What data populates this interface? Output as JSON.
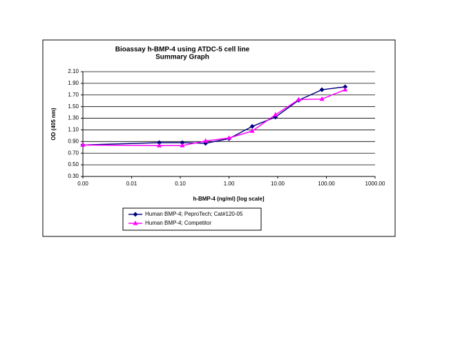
{
  "chart_data": {
    "type": "line",
    "title": "Bioassay h-BMP-4 using ATDC-5 cell line",
    "subtitle": "Summary Graph",
    "x_label": "h-BMP-4 (ng/ml) [log scale]",
    "y_label": "OD (405 nm)",
    "x_scale": "log",
    "grid": true,
    "x": [
      0.001,
      0.037,
      0.11,
      0.33,
      1,
      3,
      9,
      27,
      81,
      243
    ],
    "series": [
      {
        "name": "Human BMP-4; PeproTech; Cat#120-05",
        "color": "#000080",
        "marker": "diamond",
        "values": [
          0.84,
          0.88,
          0.88,
          0.87,
          0.95,
          1.16,
          1.32,
          1.61,
          1.79,
          1.84
        ]
      },
      {
        "name": "Human BMP-4; Competitor",
        "color": "#ff00ff",
        "marker": "triangle",
        "values": [
          0.84,
          0.83,
          0.83,
          0.91,
          0.96,
          1.08,
          1.36,
          1.62,
          1.63,
          1.79
        ]
      }
    ],
    "xlim": [
      0.001,
      1000
    ],
    "xticks": [
      {
        "value": 0.001,
        "label": "0.00"
      },
      {
        "value": 0.01,
        "label": "0.01"
      },
      {
        "value": 0.1,
        "label": "0.10"
      },
      {
        "value": 1,
        "label": "1.00"
      },
      {
        "value": 10,
        "label": "10.00"
      },
      {
        "value": 100,
        "label": "100.00"
      },
      {
        "value": 1000,
        "label": "1000.00"
      }
    ],
    "ylim": [
      0.3,
      2.1
    ],
    "yticks": [
      {
        "value": 0.3,
        "label": "0.30"
      },
      {
        "value": 0.5,
        "label": "0.50"
      },
      {
        "value": 0.7,
        "label": "0.70"
      },
      {
        "value": 0.9,
        "label": "0.90"
      },
      {
        "value": 1.1,
        "label": "1.10"
      },
      {
        "value": 1.3,
        "label": "1.30"
      },
      {
        "value": 1.5,
        "label": "1.50"
      },
      {
        "value": 1.7,
        "label": "1.70"
      },
      {
        "value": 1.9,
        "label": "1.90"
      },
      {
        "value": 2.1,
        "label": "2.10"
      }
    ]
  }
}
